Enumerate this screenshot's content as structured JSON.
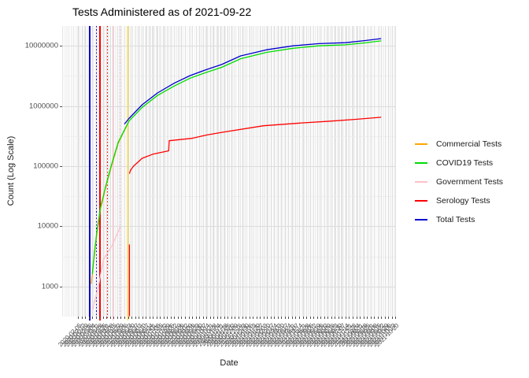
{
  "title": "Tests Administered as of 2021-09-22",
  "x_axis": {
    "title": "Date",
    "tick_start": "2020-02-05",
    "tick_end": "2021-10-20",
    "tick_interval_days": 7,
    "note": "weekly date tick labels rotated 45 degrees, heavily overlapping and illegible"
  },
  "y_axis": {
    "title": "Count (Log Scale)",
    "tick_labels": [
      "10000000",
      "1000000",
      "100000",
      "10000",
      "1000"
    ],
    "tick_values": [
      10000000,
      1000000,
      100000,
      10000,
      1000
    ]
  },
  "legend": {
    "items": [
      {
        "label": "Commercial Tests",
        "color": "#FFA500"
      },
      {
        "label": "COVID19 Tests",
        "color": "#00DC00"
      },
      {
        "label": "Government Tests",
        "color": "#FFC0CB"
      },
      {
        "label": "Serology Tests",
        "color": "#FF0000"
      },
      {
        "label": "Total Tests",
        "color": "#0000CD"
      }
    ]
  },
  "chart_data": {
    "type": "line",
    "title": "Tests Administered as of 2021-09-22",
    "xlabel": "Date",
    "ylabel": "Count (Log Scale)",
    "y_scale": "log10",
    "x_domain": [
      "2020-01-05",
      "2021-10-21"
    ],
    "y_domain_log10": [
      2.5,
      7.33
    ],
    "grid": "on",
    "legend_position": "right",
    "series": [
      {
        "name": "Government Tests",
        "color": "#FFC0CB",
        "segments": [
          [
            [
              "2020-03-05",
              420
            ],
            [
              "2020-03-16",
              1000
            ],
            [
              "2020-03-26",
              2800
            ],
            [
              "2020-04-12",
              4800
            ],
            [
              "2020-04-28",
              9800
            ]
          ]
        ]
      },
      {
        "name": "Commercial Tests",
        "color": "#FFA500",
        "segments": [
          [
            [
              "2020-03-02",
              1100
            ],
            [
              "2020-03-08",
              3200
            ],
            [
              "2020-03-13",
              7500
            ],
            [
              "2020-03-20",
              19000
            ],
            [
              "2020-03-30",
              43000
            ],
            [
              "2020-04-10",
              95000
            ],
            [
              "2020-04-24",
              240000
            ],
            [
              "2020-05-12",
              500000
            ]
          ]
        ]
      },
      {
        "name": "COVID19 Tests",
        "color": "#00DC00",
        "segments": [
          [
            [
              "2020-03-04",
              1600
            ],
            [
              "2020-03-08",
              3500
            ],
            [
              "2020-03-13",
              8000
            ],
            [
              "2020-03-20",
              20000
            ],
            [
              "2020-03-30",
              45000
            ],
            [
              "2020-04-10",
              100000
            ],
            [
              "2020-04-24",
              250000
            ],
            [
              "2020-05-15",
              560000
            ],
            [
              "2020-06-10",
              950000
            ],
            [
              "2020-07-10",
              1500000
            ],
            [
              "2020-08-12",
              2150000
            ],
            [
              "2020-09-12",
              2900000
            ],
            [
              "2020-10-13",
              3600000
            ],
            [
              "2020-11-13",
              4400000
            ],
            [
              "2020-12-20",
              6100000
            ],
            [
              "2021-02-09",
              7800000
            ],
            [
              "2021-04-02",
              9100000
            ],
            [
              "2021-05-23",
              10000000
            ],
            [
              "2021-07-14",
              10400000
            ],
            [
              "2021-08-20",
              11200000
            ],
            [
              "2021-09-22",
              12100000
            ]
          ]
        ]
      },
      {
        "name": "Serology Tests",
        "color": "#FF0000",
        "segments": [
          [
            [
              "2020-05-16",
              320
            ],
            [
              "2020-05-16",
              5000
            ]
          ],
          [
            [
              "2020-05-16",
              75000
            ],
            [
              "2020-05-18",
              85000
            ],
            [
              "2020-05-24",
              100000
            ],
            [
              "2020-06-10",
              135000
            ],
            [
              "2020-07-01",
              158000
            ],
            [
              "2020-08-01",
              180000
            ],
            [
              "2020-08-02",
              265000
            ],
            [
              "2020-09-15",
              290000
            ],
            [
              "2020-10-15",
              330000
            ],
            [
              "2020-11-14",
              365000
            ],
            [
              "2021-02-03",
              470000
            ],
            [
              "2021-04-15",
              520000
            ],
            [
              "2021-06-15",
              560000
            ],
            [
              "2021-08-01",
              600000
            ],
            [
              "2021-09-22",
              650000
            ]
          ]
        ]
      },
      {
        "name": "Total Tests",
        "color": "#0000CD",
        "segments": [
          [
            [
              "2020-05-06",
              500000
            ],
            [
              "2020-05-15",
              620000
            ],
            [
              "2020-06-10",
              1050000
            ],
            [
              "2020-07-10",
              1650000
            ],
            [
              "2020-08-12",
              2400000
            ],
            [
              "2020-09-12",
              3200000
            ],
            [
              "2020-10-13",
              4000000
            ],
            [
              "2020-11-13",
              4900000
            ],
            [
              "2020-12-20",
              6800000
            ],
            [
              "2021-02-09",
              8600000
            ],
            [
              "2021-04-02",
              10000000
            ],
            [
              "2021-05-23",
              10900000
            ],
            [
              "2021-07-14",
              11300000
            ],
            [
              "2021-08-20",
              12200000
            ],
            [
              "2021-09-22",
              13200000
            ]
          ]
        ]
      }
    ],
    "event_vlines": [
      {
        "date": "2020-02-28",
        "color": "#0000CD",
        "style": "solid"
      },
      {
        "date": "2020-03-12",
        "color": "#0000CD",
        "style": "dotted"
      },
      {
        "date": "2020-03-19",
        "color": "#FF0000",
        "style": "solid"
      },
      {
        "date": "2020-04-03",
        "color": "#FF0000",
        "style": "dotted"
      },
      {
        "date": "2020-04-14",
        "color": "#FFC0CB",
        "style": "solid"
      },
      {
        "date": "2020-04-28",
        "color": "#FFC0CB",
        "style": "dotted"
      },
      {
        "date": "2020-05-13",
        "color": "#FFD700",
        "style": "solid"
      }
    ]
  }
}
